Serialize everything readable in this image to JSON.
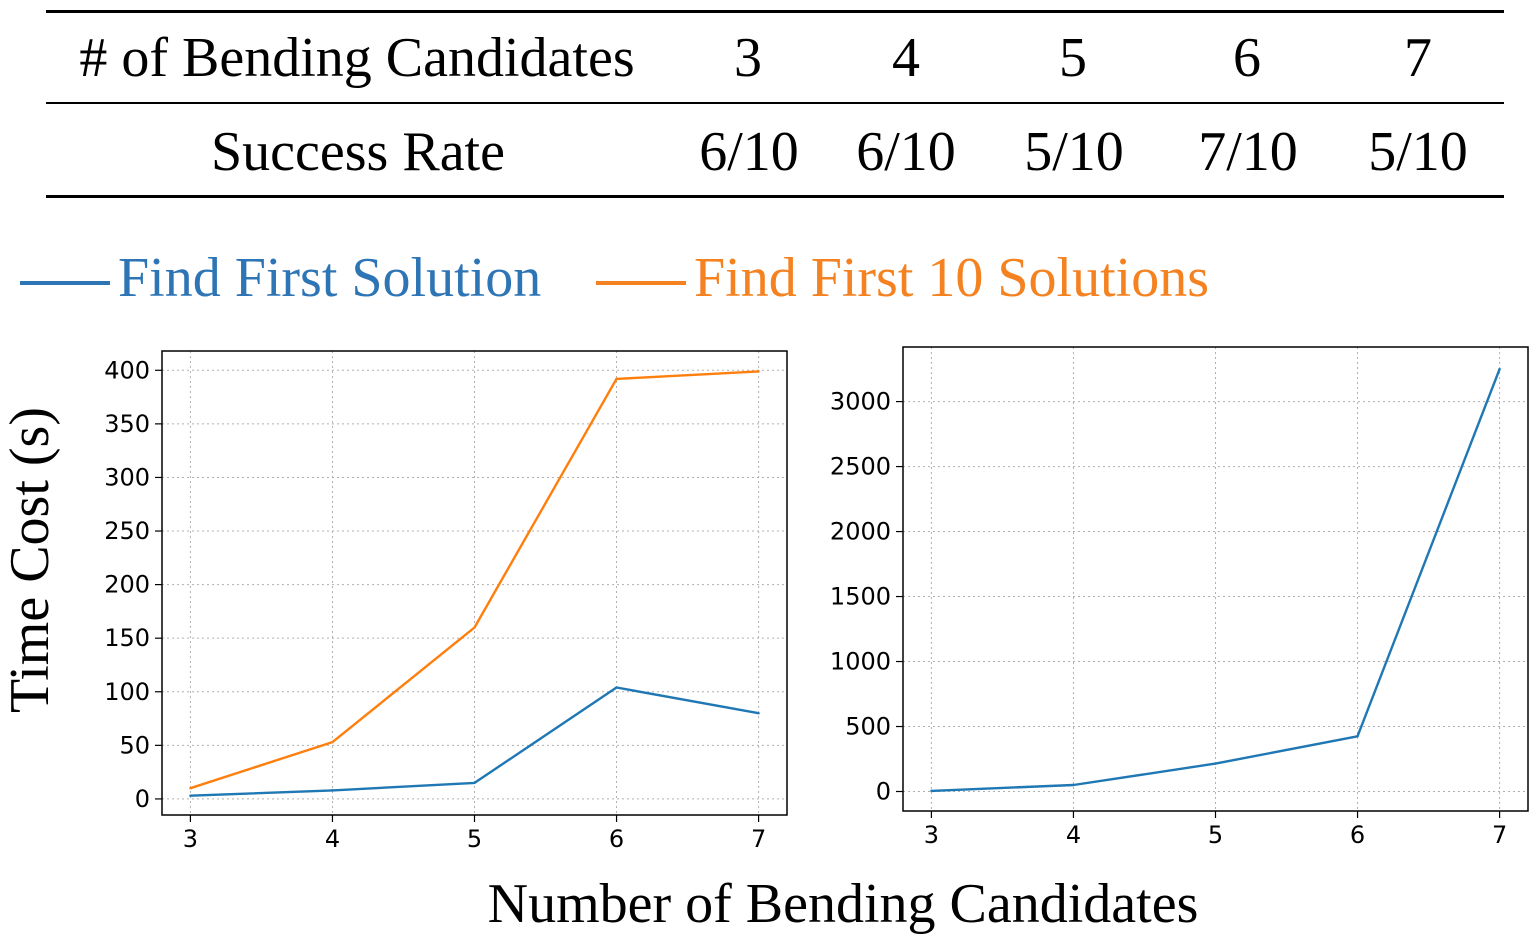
{
  "table": {
    "header": [
      "# of Bending Candidates",
      "3",
      "4",
      "5",
      "6",
      "7"
    ],
    "row": [
      "Success Rate",
      "6/10",
      "6/10",
      "5/10",
      "7/10",
      "5/10"
    ]
  },
  "legend": [
    {
      "label": "Find First Solution",
      "color": "#2E75B6"
    },
    {
      "label": "Find First 10 Solutions",
      "color": "#F58220"
    }
  ],
  "ylabel": "Time Cost (s)",
  "xlabel": "Number of Bending Candidates",
  "chart_data": [
    {
      "type": "line",
      "x": [
        3,
        4,
        5,
        6,
        7
      ],
      "xlim": [
        2.8,
        7.2
      ],
      "ylim": [
        -15,
        418
      ],
      "yticks": [
        0,
        50,
        100,
        150,
        200,
        250,
        300,
        350,
        400
      ],
      "grid": true,
      "series": [
        {
          "name": "Find First Solution",
          "color": "#1f77b4",
          "values": [
            3,
            8,
            15,
            104,
            80
          ]
        },
        {
          "name": "Find First 10 Solutions",
          "color": "#ff7f0e",
          "values": [
            10,
            53,
            160,
            392,
            399
          ]
        }
      ]
    },
    {
      "type": "line",
      "x": [
        3,
        4,
        5,
        6,
        7
      ],
      "xlim": [
        2.8,
        7.2
      ],
      "ylim": [
        -150,
        3420
      ],
      "yticks": [
        0,
        500,
        1000,
        1500,
        2000,
        2500,
        3000
      ],
      "grid": true,
      "series": [
        {
          "name": "Find First Solution",
          "color": "#1f77b4",
          "values": [
            5,
            50,
            215,
            425,
            3250
          ]
        }
      ]
    }
  ]
}
